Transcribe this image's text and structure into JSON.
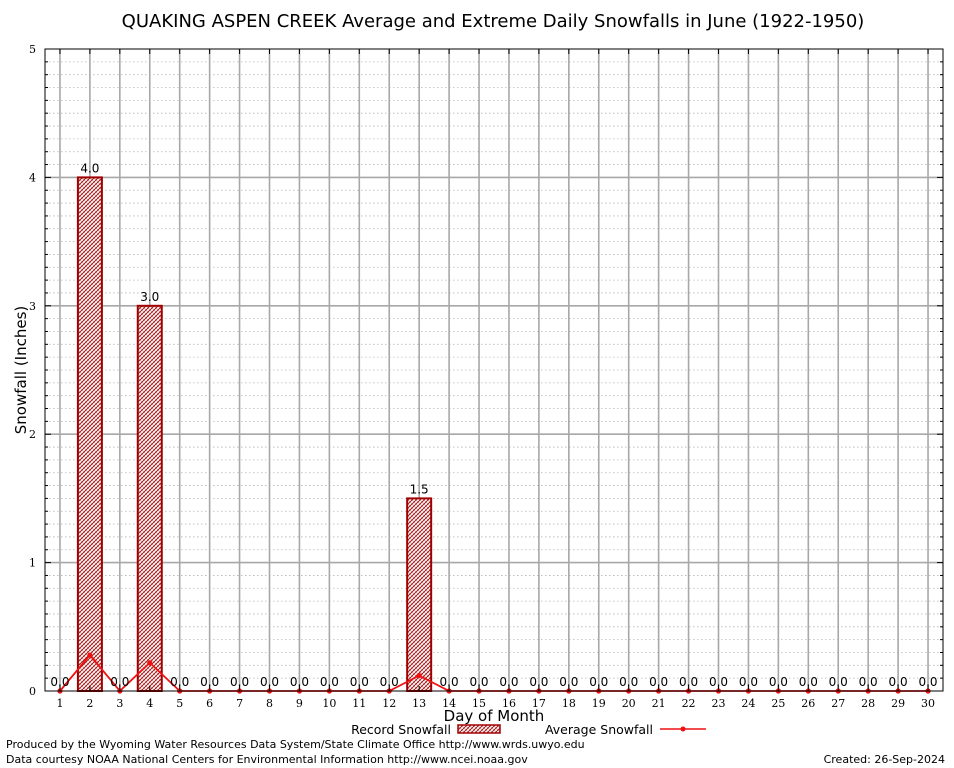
{
  "chart_data": {
    "type": "bar",
    "title": "QUAKING ASPEN CREEK Average and Extreme Daily Snowfalls in June (1922-1950)",
    "xlabel": "Day of Month",
    "ylabel": "Snowfall (Inches)",
    "ylim": [
      0,
      5
    ],
    "yticks": [
      "0",
      "1",
      "2",
      "3",
      "4",
      "5"
    ],
    "categories": [
      "1",
      "2",
      "3",
      "4",
      "5",
      "6",
      "7",
      "8",
      "9",
      "10",
      "11",
      "12",
      "13",
      "14",
      "15",
      "16",
      "17",
      "18",
      "19",
      "20",
      "21",
      "22",
      "23",
      "24",
      "25",
      "26",
      "27",
      "28",
      "29",
      "30"
    ],
    "series": [
      {
        "name": "Record Snowfall",
        "kind": "bar",
        "color": "#a00000",
        "values": [
          0.0,
          4.0,
          0.0,
          3.0,
          0.0,
          0.0,
          0.0,
          0.0,
          0.0,
          0.0,
          0.0,
          0.0,
          1.5,
          0.0,
          0.0,
          0.0,
          0.0,
          0.0,
          0.0,
          0.0,
          0.0,
          0.0,
          0.0,
          0.0,
          0.0,
          0.0,
          0.0,
          0.0,
          0.0,
          0.0
        ],
        "labels": [
          "0.0",
          "4.0",
          "0.0",
          "3.0",
          "0.0",
          "0.0",
          "0.0",
          "0.0",
          "0.0",
          "0.0",
          "0.0",
          "0.0",
          "1.5",
          "0.0",
          "0.0",
          "0.0",
          "0.0",
          "0.0",
          "0.0",
          "0.0",
          "0.0",
          "0.0",
          "0.0",
          "0.0",
          "0.0",
          "0.0",
          "0.0",
          "0.0",
          "0.0",
          "0.0"
        ]
      },
      {
        "name": "Average Snowfall",
        "kind": "line",
        "color": "#ee1111",
        "values": [
          0,
          0.28,
          0,
          0.22,
          0,
          0,
          0,
          0,
          0,
          0,
          0,
          0,
          0.12,
          0,
          0,
          0,
          0,
          0,
          0,
          0,
          0,
          0,
          0,
          0,
          0,
          0,
          0,
          0,
          0,
          0
        ]
      }
    ],
    "grid": true,
    "legend_position": "bottom-center"
  },
  "footer": {
    "produced_by": "Produced by the Wyoming Water Resources Data System/State Climate Office http://www.wrds.uwyo.edu",
    "data_courtesy": "Data courtesy NOAA National Centers for Environmental Information http://www.ncei.noaa.gov",
    "created": "Created:  26-Sep-2024"
  }
}
